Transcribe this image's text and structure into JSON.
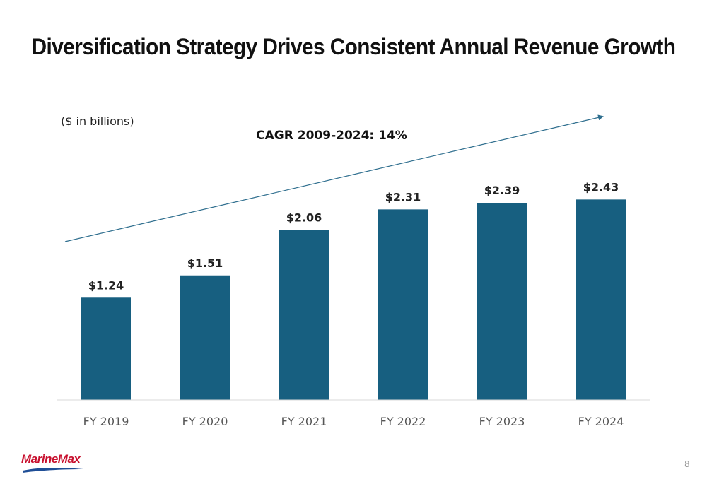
{
  "title": "Diversification Strategy Drives Consistent Annual Revenue Growth",
  "units_note": "($ in billions)",
  "cagr_label": "CAGR 2009-2024: 14%",
  "logo_text": "MarineMax",
  "page_number": "8",
  "colors": {
    "bar": "#175f80",
    "trend_arrow": "#2e6e8e"
  },
  "chart_data": {
    "type": "bar",
    "categories": [
      "FY 2019",
      "FY 2020",
      "FY 2021",
      "FY 2022",
      "FY 2023",
      "FY 2024"
    ],
    "values": [
      1.24,
      1.51,
      2.06,
      2.31,
      2.39,
      2.43
    ],
    "data_labels": [
      "$1.24",
      "$1.51",
      "$2.06",
      "$2.31",
      "$2.39",
      "$2.43"
    ],
    "title": "Diversification Strategy Drives Consistent Annual Revenue Growth",
    "annotation": "CAGR 2009-2024: 14%",
    "xlabel": "",
    "ylabel": "",
    "ylim": [
      0,
      3.05
    ],
    "grid": false,
    "legend": "none"
  }
}
